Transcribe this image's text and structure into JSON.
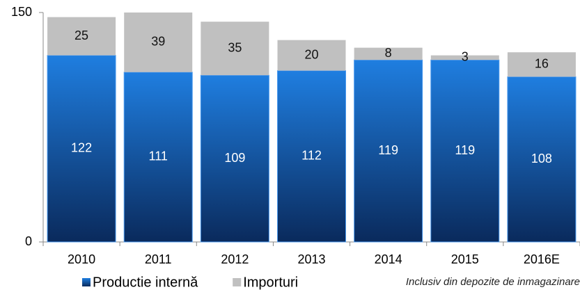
{
  "chart_data": {
    "type": "stacked_bar",
    "categories": [
      "2010",
      "2011",
      "2012",
      "2013",
      "2014",
      "2015",
      "2016E"
    ],
    "series": [
      {
        "name": "Productie internă",
        "color": "#1f7ee0",
        "values": [
          122,
          111,
          109,
          112,
          119,
          119,
          108
        ]
      },
      {
        "name": "Importuri",
        "color": "#c0c0c0",
        "values": [
          25,
          39,
          35,
          20,
          8,
          3,
          16
        ]
      }
    ],
    "ylim": [
      0,
      150
    ],
    "yticks": [
      0,
      150
    ],
    "annotation": "Inclusiv din depozite de inmagazinare"
  }
}
